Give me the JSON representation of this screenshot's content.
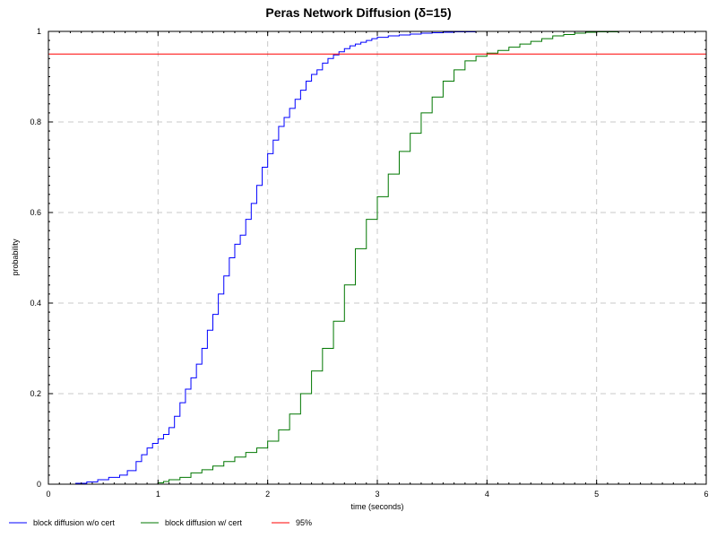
{
  "chart_data": {
    "type": "line",
    "title": "Peras Network Diffusion (δ=15)",
    "xlabel": "time (seconds)",
    "ylabel": "probability",
    "xlim": [
      0,
      6
    ],
    "ylim": [
      0,
      1
    ],
    "x_ticks": [
      "0",
      "1",
      "2",
      "3",
      "4",
      "5",
      "6"
    ],
    "y_ticks": [
      "0",
      "0.2",
      "0.4",
      "0.6",
      "0.8",
      "1"
    ],
    "grid": true,
    "legend_position": "bottom",
    "series": [
      {
        "name": "block diffusion w/o cert",
        "color": "#0000ff",
        "style": "step",
        "x": [
          0.0,
          0.25,
          0.35,
          0.45,
          0.55,
          0.65,
          0.72,
          0.8,
          0.85,
          0.9,
          0.95,
          1.0,
          1.05,
          1.1,
          1.15,
          1.2,
          1.25,
          1.3,
          1.35,
          1.4,
          1.45,
          1.5,
          1.55,
          1.6,
          1.65,
          1.7,
          1.75,
          1.8,
          1.85,
          1.9,
          1.95,
          2.0,
          2.05,
          2.1,
          2.15,
          2.2,
          2.25,
          2.3,
          2.35,
          2.4,
          2.45,
          2.5,
          2.55,
          2.6,
          2.65,
          2.7,
          2.75,
          2.8,
          2.85,
          2.9,
          2.95,
          3.0,
          3.1,
          3.2,
          3.3,
          3.4,
          3.5,
          3.6,
          3.7,
          3.8,
          3.9,
          4.0,
          4.1,
          4.2,
          5.0,
          6.0
        ],
        "y": [
          0.0,
          0.002,
          0.005,
          0.01,
          0.015,
          0.02,
          0.03,
          0.05,
          0.065,
          0.08,
          0.09,
          0.1,
          0.11,
          0.125,
          0.15,
          0.18,
          0.21,
          0.235,
          0.265,
          0.3,
          0.34,
          0.375,
          0.42,
          0.46,
          0.5,
          0.53,
          0.55,
          0.585,
          0.62,
          0.66,
          0.7,
          0.73,
          0.76,
          0.79,
          0.81,
          0.83,
          0.85,
          0.87,
          0.89,
          0.905,
          0.915,
          0.93,
          0.94,
          0.948,
          0.955,
          0.962,
          0.968,
          0.972,
          0.976,
          0.98,
          0.984,
          0.987,
          0.99,
          0.992,
          0.994,
          0.996,
          0.997,
          0.998,
          0.999,
          0.999,
          1.0,
          1.0,
          1.0,
          1.0,
          1.0,
          1.0
        ]
      },
      {
        "name": "block diffusion w/ cert",
        "color": "#007700",
        "style": "step",
        "x": [
          0.0,
          1.0,
          1.05,
          1.1,
          1.2,
          1.3,
          1.4,
          1.5,
          1.6,
          1.7,
          1.8,
          1.9,
          2.0,
          2.1,
          2.2,
          2.3,
          2.4,
          2.5,
          2.6,
          2.7,
          2.8,
          2.9,
          3.0,
          3.1,
          3.2,
          3.3,
          3.4,
          3.5,
          3.6,
          3.7,
          3.8,
          3.9,
          4.0,
          4.1,
          4.2,
          4.3,
          4.4,
          4.5,
          4.6,
          4.7,
          4.8,
          4.9,
          5.0,
          5.2,
          5.5,
          6.0
        ],
        "y": [
          0.0,
          0.003,
          0.006,
          0.01,
          0.015,
          0.025,
          0.032,
          0.04,
          0.05,
          0.06,
          0.07,
          0.08,
          0.095,
          0.12,
          0.155,
          0.2,
          0.25,
          0.3,
          0.36,
          0.44,
          0.52,
          0.585,
          0.635,
          0.685,
          0.735,
          0.775,
          0.82,
          0.855,
          0.89,
          0.915,
          0.935,
          0.945,
          0.952,
          0.958,
          0.965,
          0.972,
          0.978,
          0.984,
          0.99,
          0.993,
          0.996,
          0.998,
          0.999,
          1.0,
          1.0,
          1.0
        ]
      },
      {
        "name": "95%",
        "color": "#ff0000",
        "style": "line",
        "x": [
          0,
          6
        ],
        "y": [
          0.95,
          0.95
        ]
      }
    ]
  }
}
